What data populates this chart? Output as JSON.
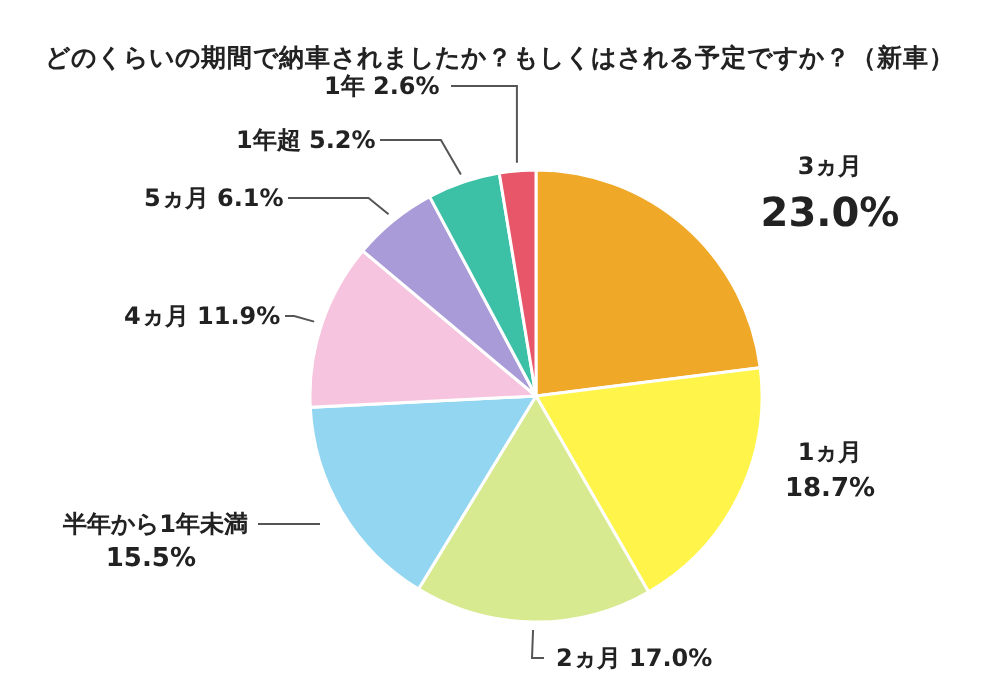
{
  "chart_data": {
    "type": "pie",
    "title": "どのくらいの期間で納車されましたか？もしくはされる予定ですか？（新車）",
    "categories": [
      "3ヵ月",
      "1ヵ月",
      "2ヵ月",
      "半年から1年未満",
      "4ヵ月",
      "5ヵ月",
      "1年超",
      "1年"
    ],
    "values": [
      23.0,
      18.7,
      17.0,
      15.5,
      11.9,
      6.1,
      5.2,
      2.6
    ],
    "value_labels": [
      "23.0%",
      "18.7%",
      "17.0%",
      "15.5%",
      "11.9%",
      "6.1%",
      "5.2%",
      "2.6%"
    ],
    "colors": [
      "#f0a828",
      "#fff44a",
      "#d8ea90",
      "#92d6f2",
      "#f6c4de",
      "#a99ad8",
      "#3cc0a6",
      "#e8566a"
    ]
  }
}
